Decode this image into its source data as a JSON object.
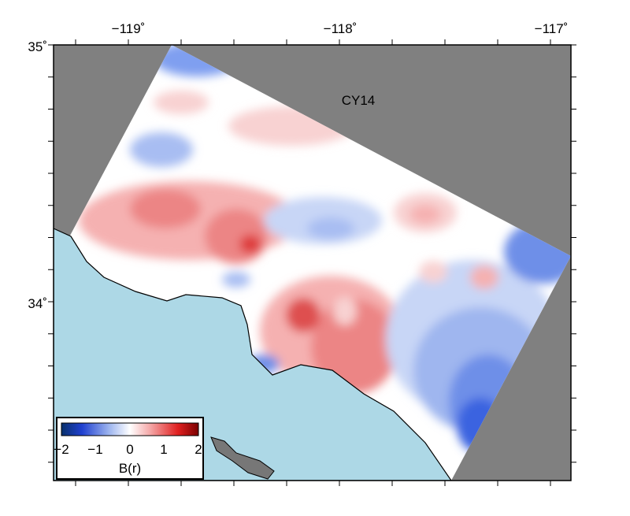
{
  "map": {
    "label": "CY14",
    "x_ticks": [
      "−119˚",
      "−118˚",
      "−117˚"
    ],
    "y_ticks": [
      "35˚",
      "34˚"
    ]
  },
  "colorbar": {
    "ticks": [
      "−2",
      "−1",
      "0",
      "1",
      "2"
    ],
    "label": "B(r)"
  }
}
